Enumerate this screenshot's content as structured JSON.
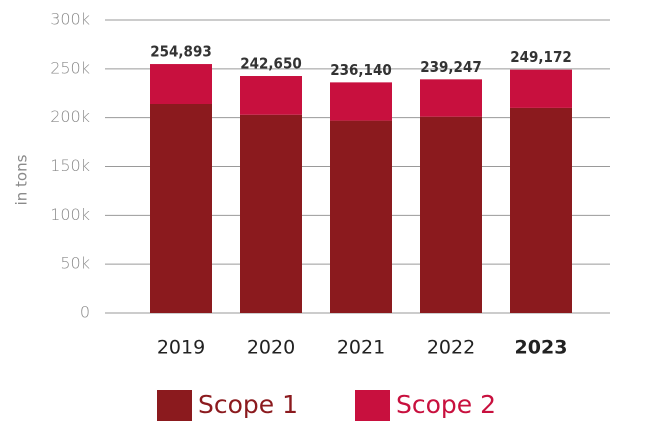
{
  "chart_data": {
    "type": "stacked_bar",
    "y_label": "in tons",
    "categories": [
      "2019",
      "2020",
      "2021",
      "2022",
      "2023"
    ],
    "highlight_index": 4,
    "series": [
      {
        "name": "Scope 1",
        "color": "#8b1a1e",
        "values": [
          214000,
          203000,
          197000,
          201000,
          210000
        ]
      },
      {
        "name": "Scope 2",
        "color": "#c8103e",
        "values": [
          40893,
          39650,
          39140,
          38247,
          39172
        ]
      }
    ],
    "totals": [
      254893,
      242650,
      236140,
      239247,
      249172
    ],
    "total_labels": [
      "254,893",
      "242,650",
      "236,140",
      "239,247",
      "249,172"
    ],
    "ylim": [
      0,
      300000
    ],
    "yticks": [
      0,
      {
        "value": 50000,
        "label": "50k"
      },
      {
        "value": 100000,
        "label": "100k"
      },
      {
        "value": 150000,
        "label": "150k"
      },
      {
        "value": 200000,
        "label": "200k"
      },
      {
        "value": 250000,
        "label": "250k"
      },
      {
        "value": 300000,
        "label": "300k"
      }
    ],
    "grid": true
  }
}
